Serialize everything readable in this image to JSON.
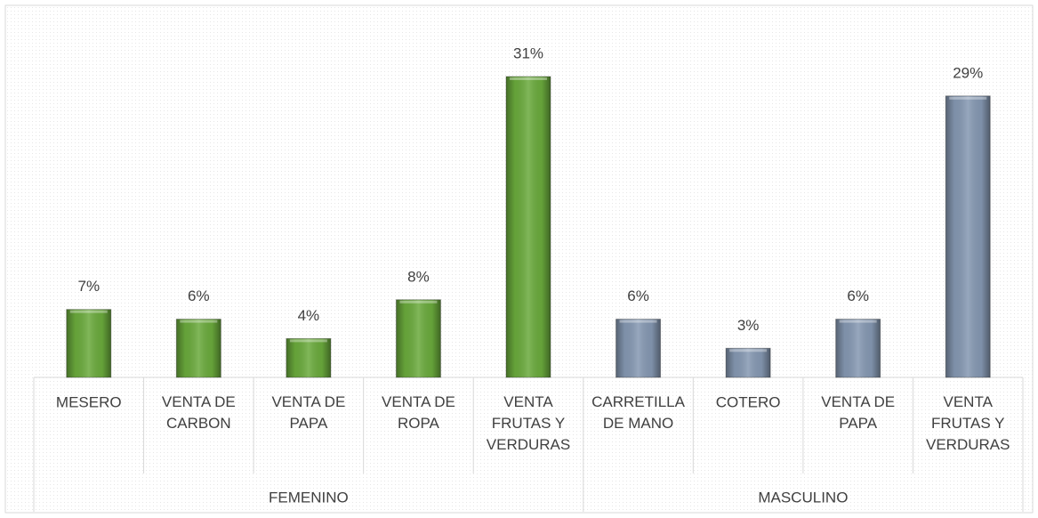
{
  "chart_data": {
    "type": "bar",
    "series": [
      {
        "name": "FEMENINO",
        "color": "#6aaa3c",
        "categories": [
          "MESERO",
          "VENTA DE\nCARBON",
          "VENTA DE\nPAPA",
          "VENTA DE\nROPA",
          "VENTA\nFRUTAS Y\nVERDURAS"
        ],
        "values": [
          7,
          6,
          4,
          8,
          31
        ],
        "value_labels": [
          "7%",
          "6%",
          "4%",
          "8%",
          "31%"
        ]
      },
      {
        "name": "MASCULINO",
        "color": "#8598b2",
        "categories": [
          "CARRETILLA\nDE MANO",
          "COTERO",
          "VENTA DE\nPAPA",
          "VENTA\nFRUTAS Y\nVERDURAS"
        ],
        "values": [
          6,
          3,
          6,
          29
        ],
        "value_labels": [
          "6%",
          "3%",
          "6%",
          "29%"
        ]
      }
    ]
  }
}
